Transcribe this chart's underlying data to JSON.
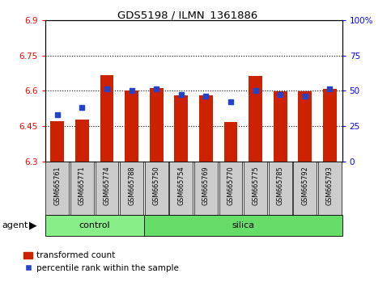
{
  "title": "GDS5198 / ILMN_1361886",
  "samples": [
    "GSM665761",
    "GSM665771",
    "GSM665774",
    "GSM665788",
    "GSM665750",
    "GSM665754",
    "GSM665769",
    "GSM665770",
    "GSM665775",
    "GSM665785",
    "GSM665792",
    "GSM665793"
  ],
  "groups": [
    "control",
    "control",
    "control",
    "control",
    "silica",
    "silica",
    "silica",
    "silica",
    "silica",
    "silica",
    "silica",
    "silica"
  ],
  "red_values": [
    6.471,
    6.477,
    6.665,
    6.601,
    6.61,
    6.581,
    6.58,
    6.469,
    6.662,
    6.597,
    6.597,
    6.607
  ],
  "blue_values": [
    0.33,
    0.385,
    0.515,
    0.5,
    0.515,
    0.475,
    0.465,
    0.42,
    0.5,
    0.475,
    0.465,
    0.515
  ],
  "ymin": 6.3,
  "ymax": 6.9,
  "yticks": [
    6.3,
    6.45,
    6.6,
    6.75,
    6.9
  ],
  "ytick_labels": [
    "6.3",
    "6.45",
    "6.6",
    "6.75",
    "6.9"
  ],
  "right_yticks": [
    0.0,
    0.25,
    0.5,
    0.75,
    1.0
  ],
  "right_ytick_labels": [
    "0",
    "25",
    "50",
    "75",
    "100%"
  ],
  "bar_color": "#cc2200",
  "dot_color": "#2244cc",
  "control_color": "#88ee88",
  "silica_color": "#66dd66",
  "sample_bg": "#cccccc",
  "agent_label": "agent",
  "control_label": "control",
  "silica_label": "silica",
  "legend_red": "transformed count",
  "legend_blue": "percentile rank within the sample",
  "control_count": 4,
  "silica_count": 8
}
